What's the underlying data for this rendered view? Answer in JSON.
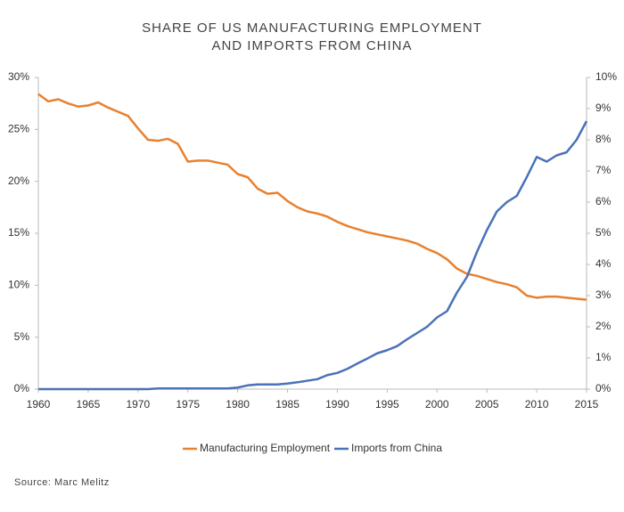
{
  "chart_data": {
    "type": "line",
    "title": "SHARE OF US MANUFACTURING EMPLOYMENT AND IMPORTS FROM CHINA",
    "source": "Source: Marc Melitz",
    "x": [
      1960,
      1961,
      1962,
      1963,
      1964,
      1965,
      1966,
      1967,
      1968,
      1969,
      1970,
      1971,
      1972,
      1973,
      1974,
      1975,
      1976,
      1977,
      1978,
      1979,
      1980,
      1981,
      1982,
      1983,
      1984,
      1985,
      1986,
      1987,
      1988,
      1989,
      1990,
      1991,
      1992,
      1993,
      1994,
      1995,
      1996,
      1997,
      1998,
      1999,
      2000,
      2001,
      2002,
      2003,
      2004,
      2005,
      2006,
      2007,
      2008,
      2009,
      2010,
      2011,
      2012,
      2013,
      2014,
      2015
    ],
    "xlim": [
      1960,
      2015
    ],
    "xticks": [
      1960,
      1965,
      1970,
      1975,
      1980,
      1985,
      1990,
      1995,
      2000,
      2005,
      2010,
      2015
    ],
    "ylim": [
      0,
      30
    ],
    "yticks": [
      {
        "value": 0,
        "label": "0%"
      },
      {
        "value": 5,
        "label": "5%"
      },
      {
        "value": 10,
        "label": "10%"
      },
      {
        "value": 15,
        "label": "15%"
      },
      {
        "value": 20,
        "label": "20%"
      },
      {
        "value": 25,
        "label": "25%"
      },
      {
        "value": 30,
        "label": "30%"
      }
    ],
    "y2lim": [
      0,
      10
    ],
    "y2ticks": [
      {
        "value": 0,
        "label": "0%"
      },
      {
        "value": 1,
        "label": "1%"
      },
      {
        "value": 2,
        "label": "2%"
      },
      {
        "value": 3,
        "label": "3%"
      },
      {
        "value": 4,
        "label": "4%"
      },
      {
        "value": 5,
        "label": "5%"
      },
      {
        "value": 6,
        "label": "6%"
      },
      {
        "value": 7,
        "label": "7%"
      },
      {
        "value": 8,
        "label": "8%"
      },
      {
        "value": 9,
        "label": "9%"
      },
      {
        "value": 10,
        "label": "10%"
      }
    ],
    "series": [
      {
        "name": "Manufacturing Employment",
        "color": "#e8812f",
        "values": [
          28.4,
          27.7,
          27.9,
          27.5,
          27.2,
          27.3,
          27.6,
          27.1,
          26.7,
          26.3,
          25.1,
          24.0,
          23.9,
          24.1,
          23.6,
          21.9,
          22.0,
          22.0,
          21.8,
          21.6,
          20.7,
          20.4,
          19.3,
          18.8,
          18.9,
          18.1,
          17.5,
          17.1,
          16.9,
          16.6,
          16.1,
          15.7,
          15.4,
          15.1,
          14.9,
          14.7,
          14.5,
          14.3,
          14.0,
          13.5,
          13.1,
          12.5,
          11.6,
          11.1,
          10.9,
          10.6,
          10.3,
          10.1,
          9.8,
          9.0,
          8.8,
          8.9,
          8.9,
          8.8,
          8.7,
          8.6
        ]
      },
      {
        "name": "Imports from China",
        "color": "#4a72b8",
        "axis": "y2",
        "values": [
          0,
          0,
          0,
          0,
          0,
          0,
          0,
          0,
          0,
          0,
          0,
          0,
          0.02,
          0.02,
          0.02,
          0.02,
          0.02,
          0.02,
          0.02,
          0.02,
          0.05,
          0.12,
          0.15,
          0.15,
          0.15,
          0.18,
          0.22,
          0.27,
          0.32,
          0.45,
          0.52,
          0.65,
          0.82,
          0.98,
          1.15,
          1.25,
          1.38,
          1.6,
          1.8,
          2.0,
          2.3,
          2.5,
          3.1,
          3.6,
          4.4,
          5.1,
          5.7,
          6.0,
          6.2,
          6.8,
          7.45,
          7.3,
          7.5,
          7.6,
          8.0,
          8.6
        ]
      }
    ]
  }
}
